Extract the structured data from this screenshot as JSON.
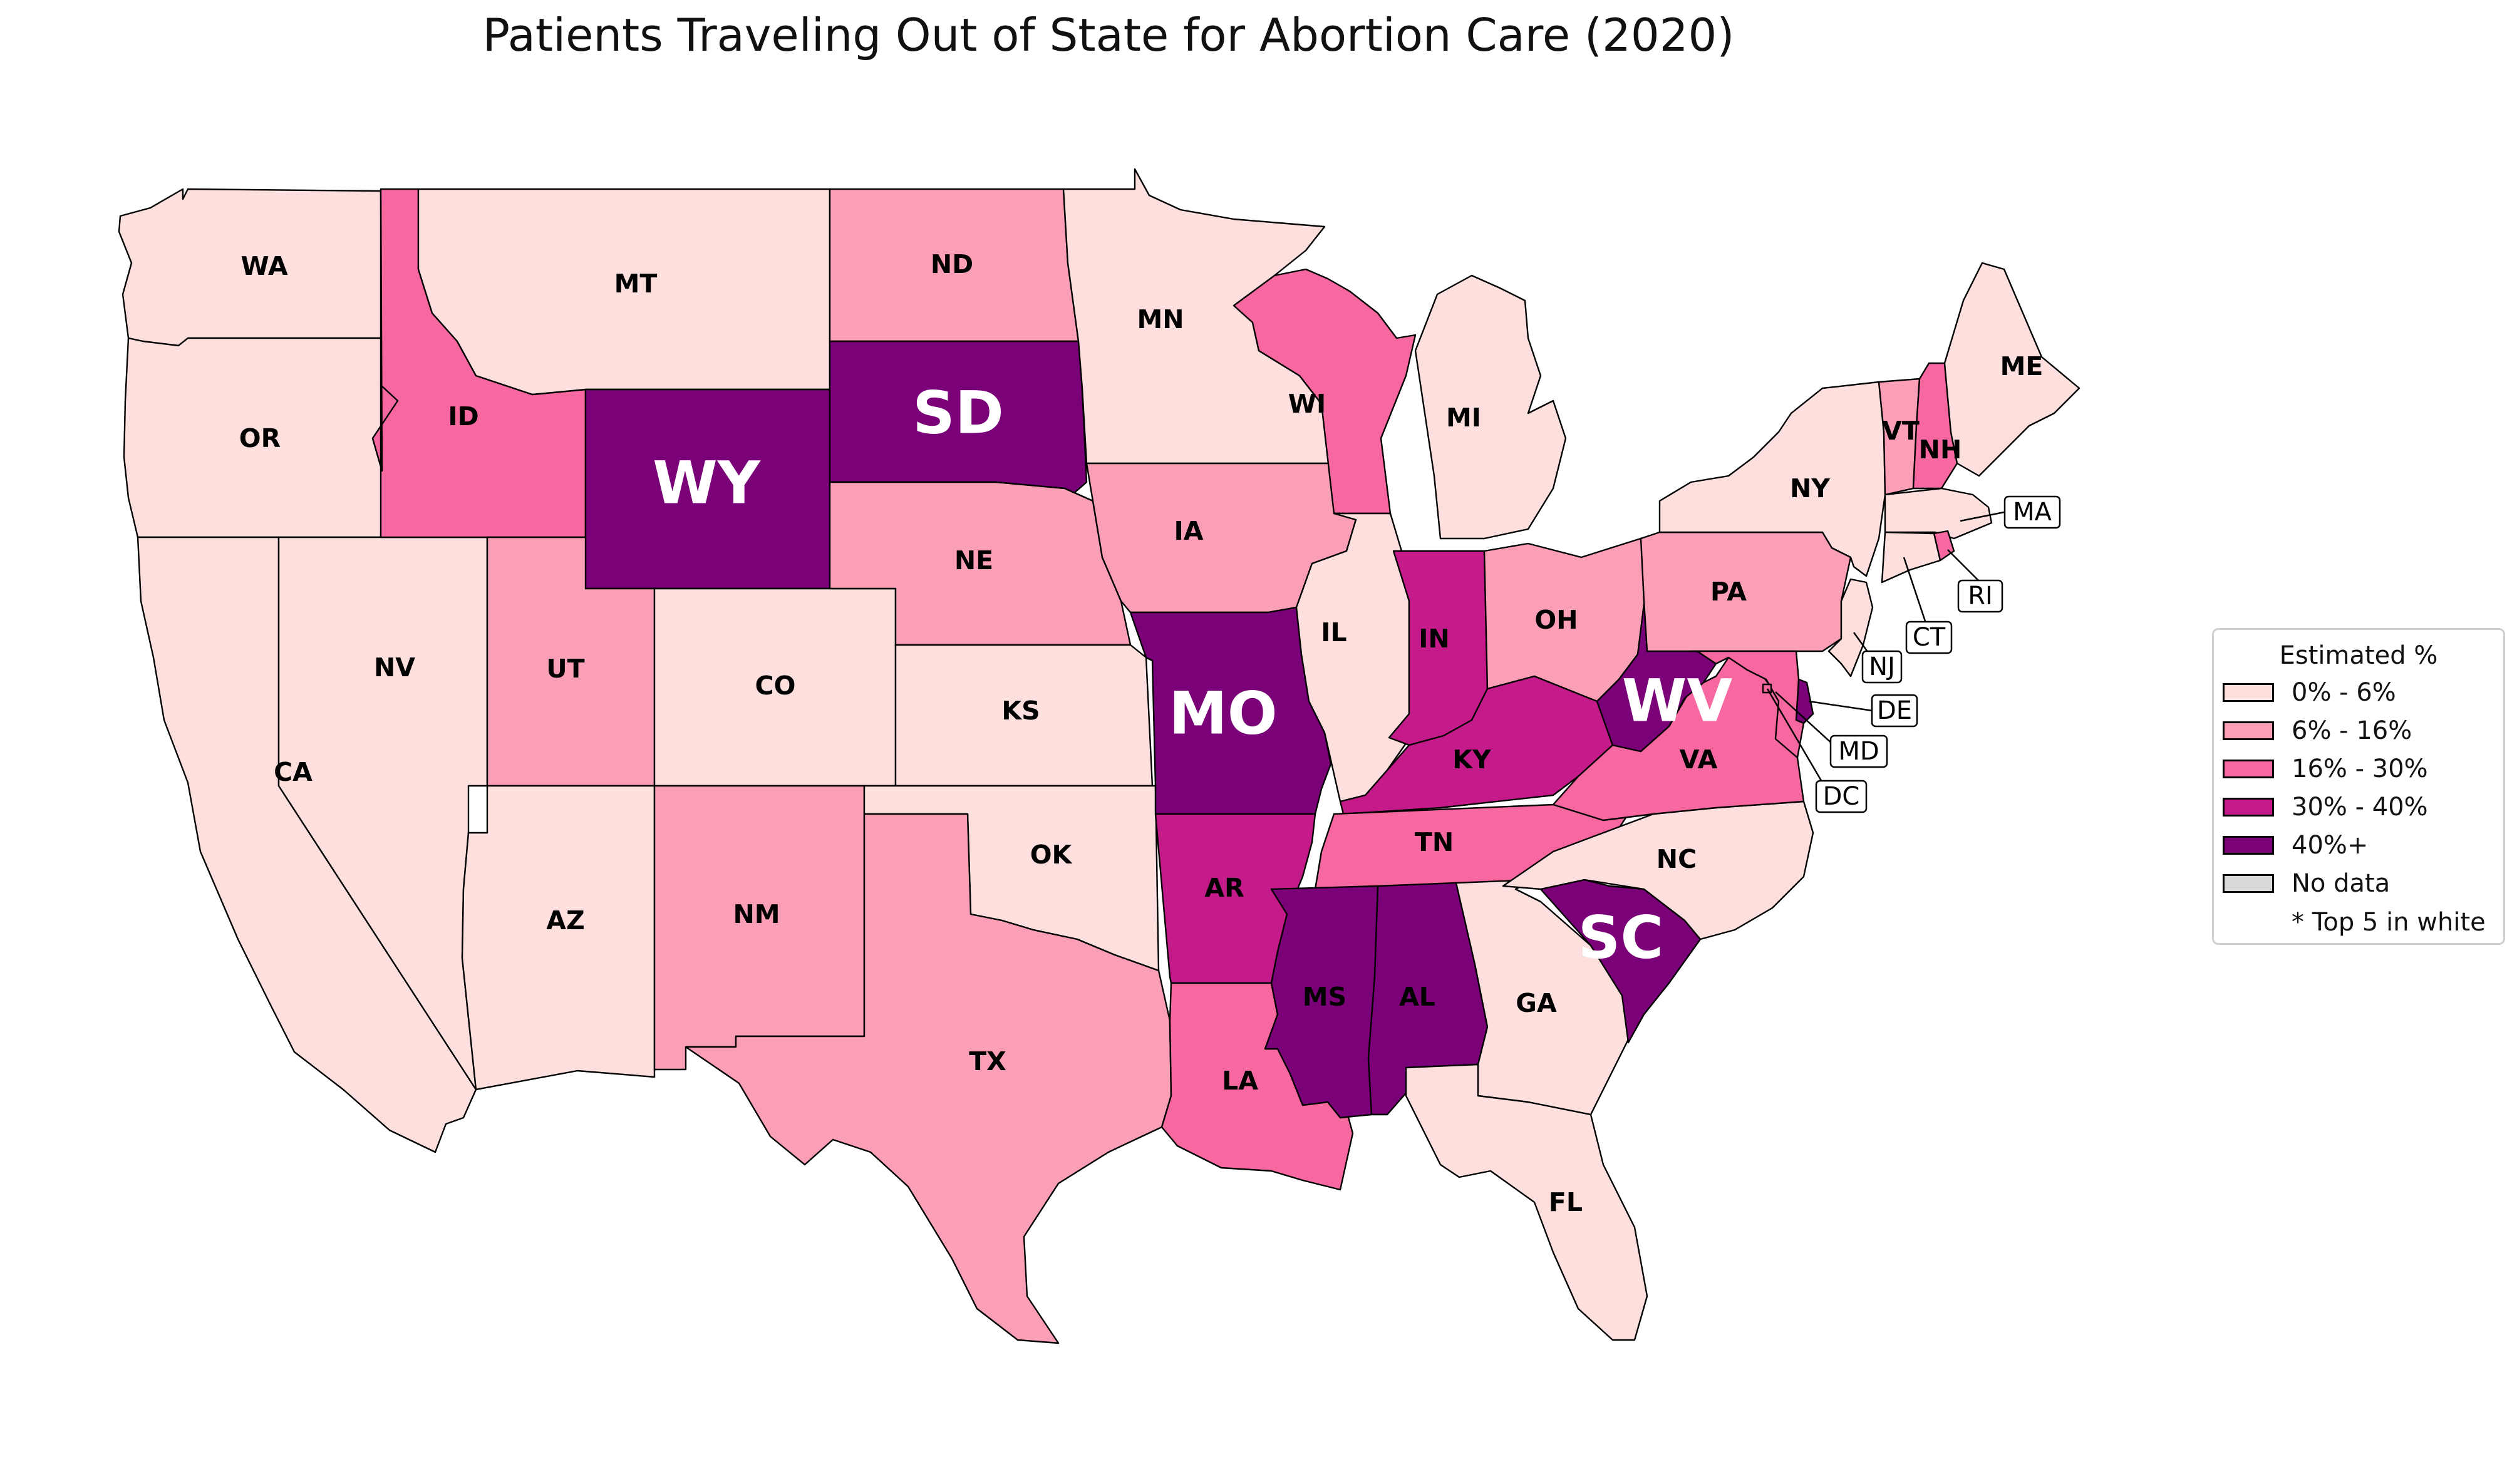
{
  "title": "Patients Traveling Out of State for Abortion Care (2020)",
  "legend": {
    "title": "Estimated %",
    "items": [
      {
        "label": "0% - 6%",
        "color": "#fde0dd"
      },
      {
        "label": "6% - 16%",
        "color": "#fa9fb5"
      },
      {
        "label": "16% - 30%",
        "color": "#f768a1"
      },
      {
        "label": "30% - 40%",
        "color": "#c51b8a"
      },
      {
        "label": "40%+",
        "color": "#7a0177"
      },
      {
        "label": "No data",
        "color": "#d9d9d9"
      }
    ],
    "note": "* Top 5 in white"
  },
  "states": [
    {
      "code": "WA",
      "category": "0% - 6%"
    },
    {
      "code": "OR",
      "category": "0% - 6%"
    },
    {
      "code": "CA",
      "category": "0% - 6%"
    },
    {
      "code": "NV",
      "category": "0% - 6%"
    },
    {
      "code": "ID",
      "category": "16% - 30%"
    },
    {
      "code": "MT",
      "category": "0% - 6%"
    },
    {
      "code": "WY",
      "category": "40%+",
      "top5": true
    },
    {
      "code": "UT",
      "category": "6% - 16%"
    },
    {
      "code": "AZ",
      "category": "0% - 6%"
    },
    {
      "code": "CO",
      "category": "0% - 6%"
    },
    {
      "code": "NM",
      "category": "6% - 16%"
    },
    {
      "code": "ND",
      "category": "6% - 16%"
    },
    {
      "code": "SD",
      "category": "40%+",
      "top5": true
    },
    {
      "code": "NE",
      "category": "6% - 16%"
    },
    {
      "code": "KS",
      "category": "0% - 6%"
    },
    {
      "code": "OK",
      "category": "0% - 6%"
    },
    {
      "code": "TX",
      "category": "6% - 16%"
    },
    {
      "code": "MN",
      "category": "0% - 6%"
    },
    {
      "code": "IA",
      "category": "6% - 16%"
    },
    {
      "code": "MO",
      "category": "40%+",
      "top5": true
    },
    {
      "code": "AR",
      "category": "30% - 40%"
    },
    {
      "code": "LA",
      "category": "16% - 30%"
    },
    {
      "code": "WI",
      "category": "16% - 30%"
    },
    {
      "code": "IL",
      "category": "0% - 6%"
    },
    {
      "code": "MI",
      "category": "0% - 6%"
    },
    {
      "code": "IN",
      "category": "30% - 40%"
    },
    {
      "code": "OH",
      "category": "6% - 16%"
    },
    {
      "code": "KY",
      "category": "30% - 40%"
    },
    {
      "code": "TN",
      "category": "16% - 30%"
    },
    {
      "code": "MS",
      "category": "40%+"
    },
    {
      "code": "AL",
      "category": "40%+"
    },
    {
      "code": "GA",
      "category": "0% - 6%"
    },
    {
      "code": "FL",
      "category": "0% - 6%"
    },
    {
      "code": "SC",
      "category": "40%+",
      "top5": true
    },
    {
      "code": "NC",
      "category": "0% - 6%"
    },
    {
      "code": "VA",
      "category": "16% - 30%"
    },
    {
      "code": "WV",
      "category": "40%+",
      "top5": true
    },
    {
      "code": "PA",
      "category": "6% - 16%"
    },
    {
      "code": "NY",
      "category": "0% - 6%"
    },
    {
      "code": "VT",
      "category": "6% - 16%"
    },
    {
      "code": "NH",
      "category": "16% - 30%"
    },
    {
      "code": "ME",
      "category": "0% - 6%"
    },
    {
      "code": "MA",
      "category": "0% - 6%"
    },
    {
      "code": "RI",
      "category": "16% - 30%"
    },
    {
      "code": "CT",
      "category": "0% - 6%"
    },
    {
      "code": "NJ",
      "category": "0% - 6%"
    },
    {
      "code": "DE",
      "category": "40%+"
    },
    {
      "code": "MD",
      "category": "16% - 30%"
    },
    {
      "code": "DC",
      "category": "16% - 30%"
    }
  ]
}
